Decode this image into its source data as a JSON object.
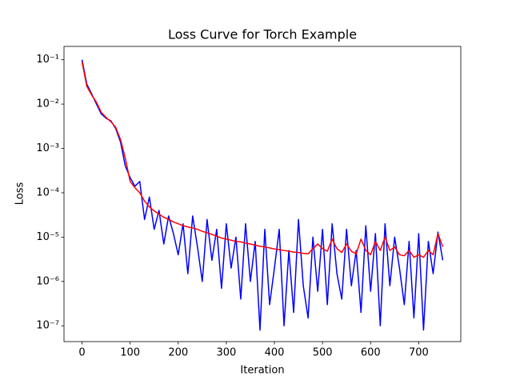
{
  "chart_data": {
    "type": "line",
    "title": "Loss Curve for Torch Example",
    "x_label": "Iteration",
    "y_label": "Loss",
    "yscale": "log",
    "grid": false,
    "x": [
      0,
      10,
      20,
      30,
      40,
      50,
      60,
      70,
      80,
      90,
      100,
      110,
      120,
      130,
      140,
      150,
      160,
      170,
      180,
      190,
      200,
      210,
      220,
      230,
      240,
      250,
      260,
      270,
      280,
      290,
      300,
      310,
      320,
      330,
      340,
      350,
      360,
      370,
      380,
      390,
      400,
      410,
      420,
      430,
      440,
      450,
      460,
      470,
      480,
      490,
      500,
      510,
      520,
      530,
      540,
      550,
      560,
      570,
      580,
      590,
      600,
      610,
      620,
      630,
      640,
      650,
      660,
      670,
      680,
      690,
      700,
      710,
      720,
      730,
      740,
      750
    ],
    "series": [
      {
        "color": "#0000ff",
        "values": [
          0.1,
          0.028,
          0.017,
          0.01,
          0.006,
          0.0048,
          0.0042,
          0.0028,
          0.0014,
          0.0004,
          0.00022,
          0.00014,
          0.00018,
          2.5e-05,
          8e-05,
          1.5e-05,
          4e-05,
          7e-06,
          3e-05,
          1.2e-05,
          4e-06,
          2e-05,
          1.5e-06,
          3e-05,
          6e-06,
          1e-06,
          2.5e-05,
          3e-06,
          1.5e-05,
          7e-07,
          2e-05,
          2e-06,
          1e-05,
          4e-07,
          2e-05,
          1e-06,
          8e-06,
          8e-08,
          1.5e-05,
          3e-07,
          2e-06,
          1.5e-05,
          1e-07,
          5e-06,
          2e-07,
          2.5e-05,
          8e-07,
          1.5e-07,
          1e-05,
          6e-07,
          1.5e-05,
          3e-07,
          2e-05,
          1.5e-06,
          4e-07,
          1.5e-05,
          8e-07,
          5e-06,
          2e-07,
          1.8e-05,
          6e-07,
          1.2e-05,
          1e-07,
          2e-05,
          8e-07,
          1e-05,
          2e-06,
          3e-07,
          8e-06,
          1.5e-07,
          1.2e-05,
          8e-08,
          8e-06,
          1.5e-06,
          1.3e-05,
          3e-06
        ]
      },
      {
        "color": "#ff0000",
        "values": [
          0.09,
          0.025,
          0.016,
          0.011,
          0.0065,
          0.005,
          0.004,
          0.003,
          0.0016,
          0.0006,
          0.00018,
          0.00013,
          0.0001,
          6.5e-05,
          4.8e-05,
          3.9e-05,
          3.3e-05,
          2.8e-05,
          2.5e-05,
          2.2e-05,
          2e-05,
          1.8e-05,
          1.7e-05,
          1.6e-05,
          1.5e-05,
          1.35e-05,
          1.25e-05,
          1.15e-05,
          1.05e-05,
          9.5e-06,
          9e-06,
          8.5e-06,
          8e-06,
          7.8e-06,
          7.3e-06,
          7e-06,
          6.6e-06,
          6.2e-06,
          6e-06,
          5.7e-06,
          5.4e-06,
          5.2e-06,
          5e-06,
          4.8e-06,
          4.6e-06,
          4.5e-06,
          4.3e-06,
          4.2e-06,
          5.5e-06,
          7e-06,
          5.5e-06,
          4.8e-06,
          9e-06,
          5.5e-06,
          4.5e-06,
          7e-06,
          4.8e-06,
          4.2e-06,
          9e-06,
          5e-06,
          4e-06,
          8e-06,
          5e-06,
          1e-05,
          5e-06,
          6e-06,
          4e-06,
          3.8e-06,
          5e-06,
          3.5e-06,
          4e-06,
          3.5e-06,
          5e-06,
          4e-06,
          1.2e-05,
          6e-06
        ]
      }
    ],
    "xlim": [
      -37.5,
      787.5
    ],
    "xticks": [
      0,
      100,
      200,
      300,
      400,
      500,
      600,
      700
    ],
    "ylim": [
      4.4e-08,
      0.2
    ],
    "yticks": [
      {
        "value": 1e-07,
        "label": "10⁻⁷"
      },
      {
        "value": 1e-06,
        "label": "10⁻⁶"
      },
      {
        "value": 1e-05,
        "label": "10⁻⁵"
      },
      {
        "value": 0.0001,
        "label": "10⁻⁴"
      },
      {
        "value": 0.001,
        "label": "10⁻³"
      },
      {
        "value": 0.01,
        "label": "10⁻²"
      },
      {
        "value": 0.1,
        "label": "10⁻¹"
      }
    ]
  }
}
